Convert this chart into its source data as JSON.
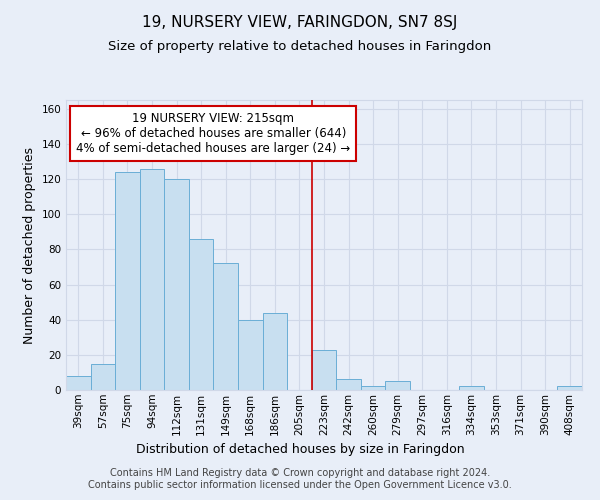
{
  "title": "19, NURSERY VIEW, FARINGDON, SN7 8SJ",
  "subtitle": "Size of property relative to detached houses in Faringdon",
  "xlabel": "Distribution of detached houses by size in Faringdon",
  "ylabel": "Number of detached properties",
  "bar_labels": [
    "39sqm",
    "57sqm",
    "75sqm",
    "94sqm",
    "112sqm",
    "131sqm",
    "149sqm",
    "168sqm",
    "186sqm",
    "205sqm",
    "223sqm",
    "242sqm",
    "260sqm",
    "279sqm",
    "297sqm",
    "316sqm",
    "334sqm",
    "353sqm",
    "371sqm",
    "390sqm",
    "408sqm"
  ],
  "bar_values": [
    8,
    15,
    124,
    126,
    120,
    86,
    72,
    40,
    44,
    0,
    23,
    6,
    2,
    5,
    0,
    0,
    2,
    0,
    0,
    0,
    2
  ],
  "bar_color": "#c8dff0",
  "bar_edge_color": "#6aaed6",
  "vline_x_index": 10.0,
  "vline_color": "#cc0000",
  "annotation_text": "19 NURSERY VIEW: 215sqm\n← 96% of detached houses are smaller (644)\n4% of semi-detached houses are larger (24) →",
  "annotation_box_color": "#ffffff",
  "annotation_box_edge": "#cc0000",
  "ylim": [
    0,
    165
  ],
  "yticks": [
    0,
    20,
    40,
    60,
    80,
    100,
    120,
    140,
    160
  ],
  "footer_text": "Contains HM Land Registry data © Crown copyright and database right 2024.\nContains public sector information licensed under the Open Government Licence v3.0.",
  "bg_color": "#e8eef8",
  "grid_color": "#d0d8e8",
  "title_fontsize": 11,
  "subtitle_fontsize": 9.5,
  "axis_label_fontsize": 9,
  "tick_fontsize": 7.5,
  "annotation_fontsize": 8.5,
  "footer_fontsize": 7
}
